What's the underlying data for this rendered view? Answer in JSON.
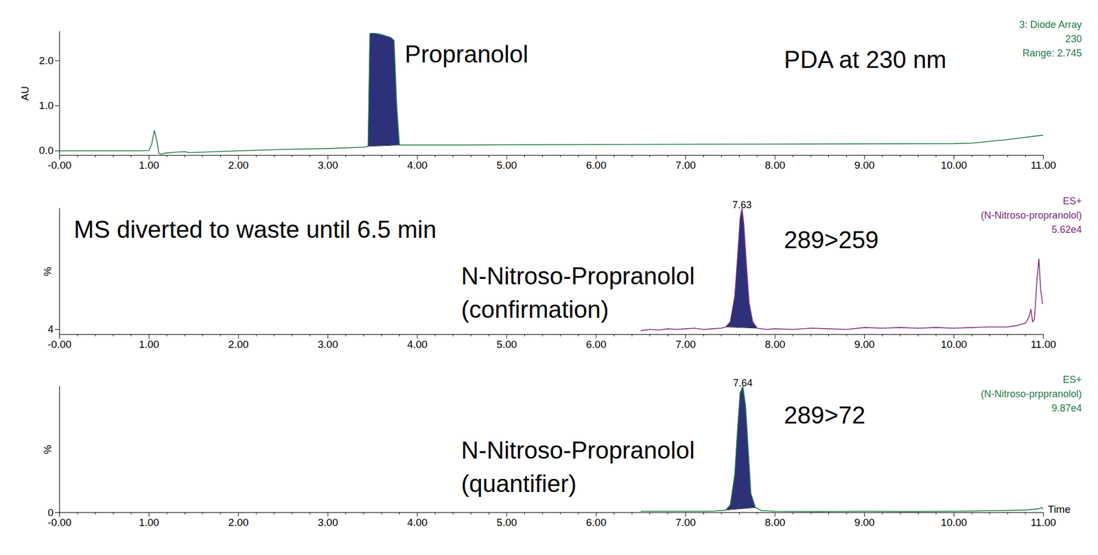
{
  "chart_data": [
    {
      "type": "line",
      "header": [
        "3: Diode Array",
        "230",
        "Range: 2.745"
      ],
      "ylabel": "AU",
      "color": "#1f7a46",
      "xlim": [
        0,
        11
      ],
      "xticks": [
        {
          "value": 0,
          "label": "-0.00"
        },
        {
          "value": 1,
          "label": "1.00"
        },
        {
          "value": 2,
          "label": "2.00"
        },
        {
          "value": 3,
          "label": "3.00"
        },
        {
          "value": 4,
          "label": "4.00"
        },
        {
          "value": 5,
          "label": "5.00"
        },
        {
          "value": 6,
          "label": "6.00"
        },
        {
          "value": 7,
          "label": "7.00"
        },
        {
          "value": 8,
          "label": "8.00"
        },
        {
          "value": 9,
          "label": "9.00"
        },
        {
          "value": 10,
          "label": "10.00"
        },
        {
          "value": 11,
          "label": "11.00"
        }
      ],
      "ylim": [
        -0.1,
        2.65
      ],
      "yticks": [
        {
          "value": 0,
          "label": "0.0"
        },
        {
          "value": 1,
          "label": "1.0"
        },
        {
          "value": 2,
          "label": "2.0"
        }
      ],
      "x": [
        0,
        0.5,
        0.9,
        1.0,
        1.03,
        1.06,
        1.09,
        1.11,
        1.13,
        1.18,
        1.3,
        1.4,
        1.45,
        1.6,
        2.0,
        2.5,
        3.0,
        3.4,
        3.45,
        3.47,
        3.49,
        3.55,
        3.6,
        3.65,
        3.7,
        3.74,
        3.77,
        3.8,
        3.9,
        4.5,
        6,
        8,
        10,
        10.2,
        10.6,
        11
      ],
      "values": [
        0.0,
        0.0,
        0.0,
        0.01,
        0.15,
        0.45,
        0.2,
        -0.05,
        -0.08,
        -0.05,
        -0.03,
        -0.02,
        -0.04,
        -0.03,
        0.0,
        0.03,
        0.05,
        0.08,
        0.1,
        2.6,
        2.61,
        2.6,
        2.58,
        2.55,
        2.52,
        2.45,
        1.0,
        0.13,
        0.13,
        0.13,
        0.14,
        0.15,
        0.16,
        0.17,
        0.25,
        0.35
      ],
      "integrated": {
        "from": 3.45,
        "to": 3.8
      },
      "annotations": [
        {
          "text": "Propranolol",
          "x": 3.86,
          "y": 2.2
        },
        {
          "text": "PDA at 230 nm",
          "x": 8.1,
          "y": 2.08
        }
      ]
    },
    {
      "type": "line",
      "header": [
        "ES+",
        "(N-Nitroso-propranolol)",
        "5.62e4"
      ],
      "ylabel": "%",
      "color": "#7b2a7b",
      "xlim": [
        0,
        11
      ],
      "xticks": [
        {
          "value": 0,
          "label": "-0.00"
        },
        {
          "value": 1,
          "label": "1.00"
        },
        {
          "value": 2,
          "label": "2.00"
        },
        {
          "value": 3,
          "label": "3.00"
        },
        {
          "value": 4,
          "label": "4.00"
        },
        {
          "value": 5,
          "label": "5.00"
        },
        {
          "value": 6,
          "label": "6.00"
        },
        {
          "value": 7,
          "label": "7.00"
        },
        {
          "value": 8,
          "label": "8.00"
        },
        {
          "value": 9,
          "label": "9.00"
        },
        {
          "value": 10,
          "label": "10.00"
        },
        {
          "value": 11,
          "label": "11.00"
        }
      ],
      "ylim": [
        0,
        100
      ],
      "yticks": [
        4
      ],
      "x": [
        6.5,
        6.6,
        6.7,
        6.8,
        6.9,
        7.0,
        7.1,
        7.2,
        7.3,
        7.4,
        7.45,
        7.5,
        7.55,
        7.58,
        7.61,
        7.63,
        7.65,
        7.68,
        7.71,
        7.75,
        7.8,
        7.9,
        8.0,
        8.2,
        8.4,
        8.6,
        8.8,
        9.0,
        9.2,
        9.4,
        9.6,
        9.8,
        10.0,
        10.2,
        10.4,
        10.6,
        10.7,
        10.8,
        10.84,
        10.86,
        10.88,
        10.9,
        10.93,
        10.95,
        10.97,
        10.99,
        11.0
      ],
      "values": [
        3,
        4,
        3.5,
        4.5,
        4,
        4.5,
        5,
        4,
        4.5,
        5,
        6,
        10,
        30,
        60,
        92,
        100,
        88,
        55,
        25,
        10,
        5,
        4,
        4.5,
        4,
        5,
        4.5,
        4,
        5.5,
        5,
        5.5,
        5,
        5.5,
        5,
        5.5,
        6,
        6,
        7,
        9,
        14,
        20,
        10,
        12,
        45,
        60,
        35,
        25,
        24
      ],
      "integrated": {
        "from": 7.45,
        "to": 7.8
      },
      "peak_labels": [
        7.63
      ],
      "annotations": [
        {
          "text": "MS diverted to waste until 6.5 min",
          "x": 0.16,
          "y": 85
        },
        {
          "text": "289>259",
          "x": 8.1,
          "y": 77
        },
        {
          "text": "N-Nitroso-Propranolol\n(confirmation)",
          "x": 4.49,
          "y": 35
        }
      ]
    },
    {
      "type": "line",
      "header": [
        "ES+",
        "(N-Nitroso-prppranolol)",
        "9.87e4"
      ],
      "ylabel": "%",
      "xlabel": "Time",
      "color": "#1f7a46",
      "xlim": [
        0,
        11
      ],
      "xticks": [
        {
          "value": 0,
          "label": "-0.00"
        },
        {
          "value": 1,
          "label": "1.00"
        },
        {
          "value": 2,
          "label": "2.00"
        },
        {
          "value": 3,
          "label": "3.00"
        },
        {
          "value": 4,
          "label": "4.00"
        },
        {
          "value": 5,
          "label": "5.00"
        },
        {
          "value": 6,
          "label": "6.00"
        },
        {
          "value": 7,
          "label": "7.00"
        },
        {
          "value": 8,
          "label": "8.00"
        },
        {
          "value": 9,
          "label": "9.00"
        },
        {
          "value": 10,
          "label": "10.00"
        },
        {
          "value": 11,
          "label": "11.00"
        }
      ],
      "ylim": [
        0,
        100
      ],
      "yticks": [
        0
      ],
      "x": [
        6.5,
        7.0,
        7.3,
        7.45,
        7.5,
        7.55,
        7.58,
        7.61,
        7.64,
        7.67,
        7.7,
        7.73,
        7.78,
        7.85,
        8.0,
        8.5,
        9.0,
        9.5,
        10.0,
        10.5,
        10.8,
        10.95,
        10.98,
        11.0
      ],
      "values": [
        1,
        1,
        1,
        2,
        6,
        30,
        65,
        95,
        100,
        85,
        50,
        15,
        4,
        1.5,
        1,
        0.8,
        1,
        0.8,
        1,
        1.5,
        2,
        3,
        4,
        2.5
      ],
      "integrated": {
        "from": 7.45,
        "to": 7.78
      },
      "peak_labels": [
        7.64
      ],
      "annotations": [
        {
          "text": "289>72",
          "x": 8.1,
          "y": 79
        },
        {
          "text": "N-Nitroso-Propranolol\n(quantifier)",
          "x": 4.49,
          "y": 38
        }
      ]
    }
  ]
}
